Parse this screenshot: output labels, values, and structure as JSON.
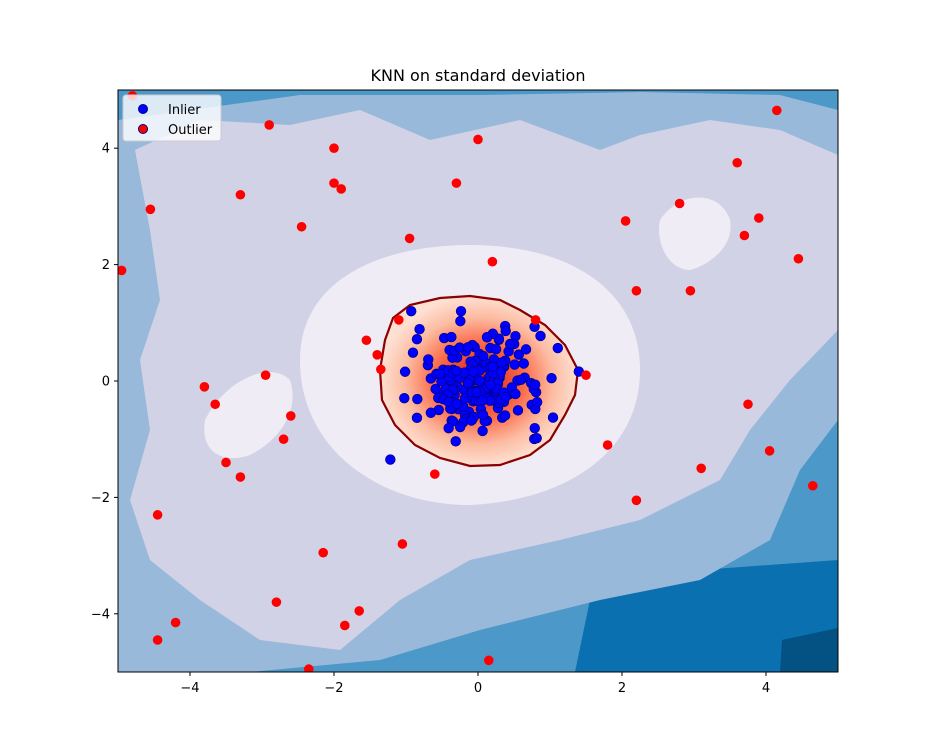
{
  "chart_data": {
    "type": "scatter",
    "title": "KNN on standard deviation",
    "xlabel": "",
    "ylabel": "",
    "xlim": [
      -5,
      5
    ],
    "ylim": [
      -5,
      5
    ],
    "xticks": [
      -4,
      -2,
      0,
      2,
      4
    ],
    "yticks": [
      -4,
      -2,
      0,
      2,
      4
    ],
    "grid": false,
    "legend_position": "top-left",
    "background": "filled contour of outlier score (blue levels) with red contour region around inliers and dark-red decision boundary",
    "colors": {
      "inlier_fill": "#0000ff",
      "inlier_edge": "#00008b",
      "outlier_fill": "#ff0000",
      "boundary": "#8b0000",
      "contour_levels": [
        "#f0ecf5",
        "#d2d2e7",
        "#99b9da",
        "#4b98c9",
        "#0b70b0",
        "#045283"
      ]
    },
    "series": [
      {
        "name": "Inlier",
        "color": "#0000ff",
        "note": "dense cluster of ~200 points centered near (0,0), spanning x -1.3..1.4, y -1.4..1.2"
      },
      {
        "name": "Outlier",
        "color": "#ff0000",
        "points": [
          [
            -4.8,
            4.9
          ],
          [
            -2.9,
            4.4
          ],
          [
            -2.0,
            4.0
          ],
          [
            0.0,
            4.15
          ],
          [
            4.15,
            4.65
          ],
          [
            -4.55,
            2.95
          ],
          [
            -3.3,
            3.2
          ],
          [
            -2.0,
            3.4
          ],
          [
            -1.9,
            3.3
          ],
          [
            -0.3,
            3.4
          ],
          [
            3.6,
            3.75
          ],
          [
            2.8,
            3.05
          ],
          [
            3.9,
            2.8
          ],
          [
            2.05,
            2.75
          ],
          [
            -2.45,
            2.65
          ],
          [
            -0.95,
            2.45
          ],
          [
            3.7,
            2.5
          ],
          [
            0.2,
            2.05
          ],
          [
            4.45,
            2.1
          ],
          [
            -4.95,
            1.9
          ],
          [
            2.2,
            1.55
          ],
          [
            2.95,
            1.55
          ],
          [
            -1.1,
            1.05
          ],
          [
            0.8,
            1.05
          ],
          [
            -1.55,
            0.7
          ],
          [
            -1.4,
            0.45
          ],
          [
            -1.35,
            0.2
          ],
          [
            1.5,
            0.1
          ],
          [
            -2.95,
            0.1
          ],
          [
            -3.8,
            -0.1
          ],
          [
            -3.65,
            -0.4
          ],
          [
            -2.6,
            -0.6
          ],
          [
            3.75,
            -0.4
          ],
          [
            -2.7,
            -1.0
          ],
          [
            1.8,
            -1.1
          ],
          [
            4.05,
            -1.2
          ],
          [
            -3.5,
            -1.4
          ],
          [
            -0.6,
            -1.6
          ],
          [
            -3.3,
            -1.65
          ],
          [
            3.1,
            -1.5
          ],
          [
            4.65,
            -1.8
          ],
          [
            -4.45,
            -2.3
          ],
          [
            2.2,
            -2.05
          ],
          [
            -1.05,
            -2.8
          ],
          [
            -2.15,
            -2.95
          ],
          [
            -2.8,
            -3.8
          ],
          [
            -1.65,
            -3.95
          ],
          [
            -1.85,
            -4.2
          ],
          [
            -4.2,
            -4.15
          ],
          [
            -4.45,
            -4.45
          ],
          [
            -2.35,
            -4.95
          ],
          [
            0.15,
            -4.8
          ]
        ]
      }
    ]
  }
}
